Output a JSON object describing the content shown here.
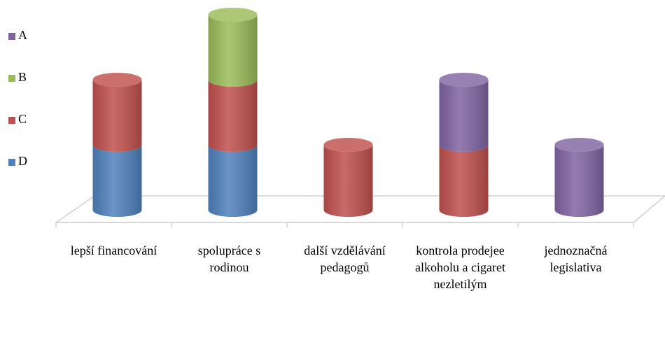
{
  "chart_data": {
    "type": "bar3d-stacked-cylinder",
    "categories": [
      "lepší financování",
      "spolupráce s rodinou",
      "další vzdělávání pedagogů",
      "kontrola prodejee alkoholu a cigaret nezletilým",
      "jednoznačná legislativa"
    ],
    "series": [
      {
        "name": "A",
        "color": "#8064a2",
        "values": [
          0,
          0,
          0,
          1,
          1
        ]
      },
      {
        "name": "B",
        "color": "#9bbb59",
        "values": [
          0,
          1,
          0,
          0,
          0
        ]
      },
      {
        "name": "C",
        "color": "#c0504d",
        "values": [
          1,
          1,
          1,
          1,
          0
        ]
      },
      {
        "name": "D",
        "color": "#4f81bd",
        "values": [
          1,
          1,
          0,
          0,
          0
        ]
      }
    ],
    "legend": "left"
  }
}
